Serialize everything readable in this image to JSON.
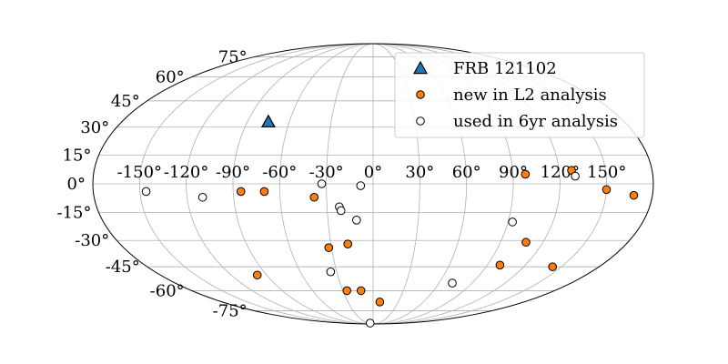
{
  "chart_data": {
    "type": "scatter",
    "projection": "mollweide",
    "grid": true,
    "legend_position": "top-right",
    "lon_ticks": [
      -150,
      -120,
      -90,
      -60,
      -30,
      0,
      30,
      60,
      90,
      120,
      150
    ],
    "lon_tick_labels": [
      "-150°",
      "-120°",
      "-90°",
      "-60°",
      "-30°",
      "0°",
      "30°",
      "60°",
      "90°",
      "120°",
      "150°"
    ],
    "lat_ticks": [
      75,
      60,
      45,
      30,
      15,
      0,
      -15,
      -30,
      -45,
      -60,
      -75
    ],
    "lat_tick_labels": [
      "75°",
      "60°",
      "45°",
      "30°",
      "15°",
      "0°",
      "-15°",
      "-30°",
      "-45°",
      "-60°",
      "-75°"
    ],
    "series": [
      {
        "name": "FRB 121102",
        "marker": "triangle",
        "color": "#1f77b4",
        "points": [
          [
            -75,
            33
          ]
        ]
      },
      {
        "name": "new in L2 analysis",
        "marker": "circle",
        "color": "#ff7f0e",
        "points": [
          [
            -85,
            -4
          ],
          [
            -70,
            -4
          ],
          [
            -38,
            -7
          ],
          [
            -32,
            -34
          ],
          [
            -18,
            -32
          ],
          [
            -26,
            -60
          ],
          [
            -12,
            -60
          ],
          [
            8,
            -68
          ],
          [
            -98,
            -50
          ],
          [
            98,
            5
          ],
          [
            128,
            7
          ],
          [
            150,
            -3
          ],
          [
            168,
            -6
          ],
          [
            108,
            -31
          ],
          [
            100,
            -44
          ],
          [
            143,
            -45
          ]
        ]
      },
      {
        "name": "used in 6yr analysis",
        "marker": "circle-open",
        "color": "#ffffff",
        "points": [
          [
            -146,
            -4
          ],
          [
            -110,
            -7
          ],
          [
            -33,
            0
          ],
          [
            -8,
            -1
          ],
          [
            -22,
            -12
          ],
          [
            -21,
            -14
          ],
          [
            -11,
            -19
          ],
          [
            -35,
            -48
          ],
          [
            -17,
            -88
          ],
          [
            72,
            -55
          ],
          [
            93,
            -20
          ],
          [
            130,
            4
          ]
        ]
      }
    ]
  }
}
